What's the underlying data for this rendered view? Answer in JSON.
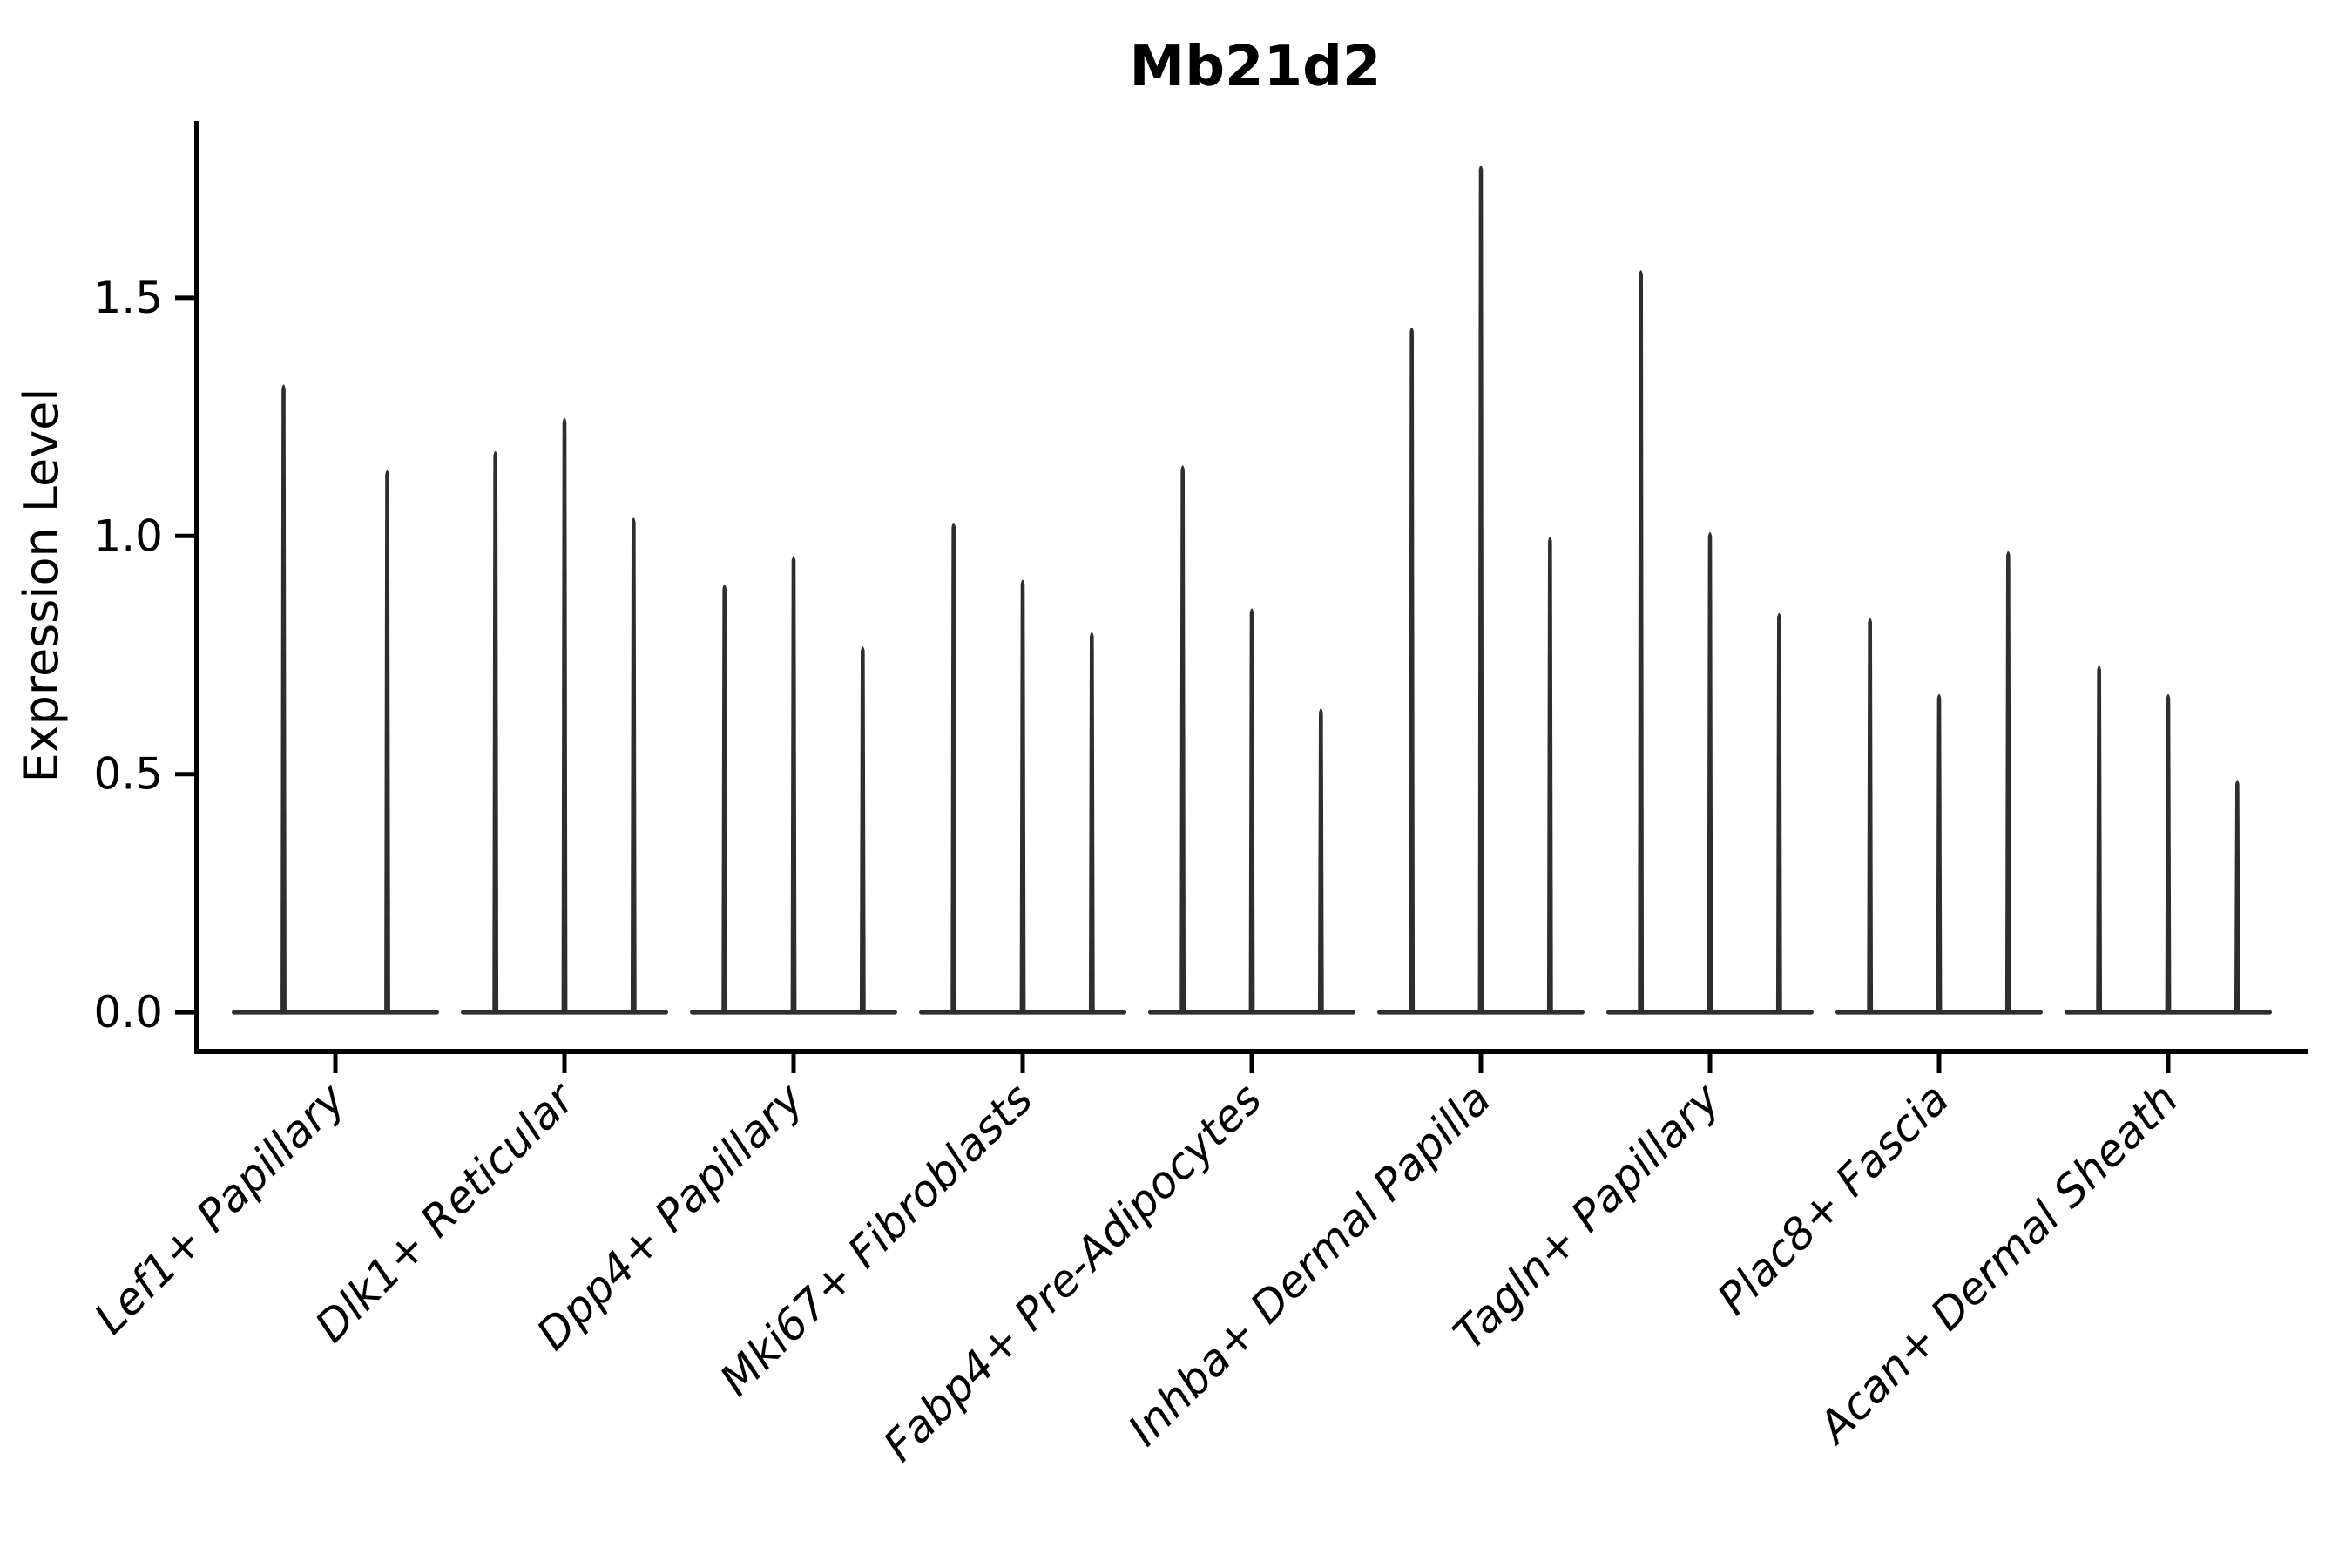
{
  "page": {
    "background": "#ffffff"
  },
  "chart_data": {
    "type": "violin",
    "title": "Mb21d2",
    "ylabel": "Expression Level",
    "xlabel": "",
    "violin_shape": "zero-inflated spike (wide flat base at 0, thin spike up to max expression)",
    "categories": [
      "Lef1+ Papillary",
      "Dlk1+ Reticular",
      "Dpp4+ Papillary",
      "Mki67+ Fibroblasts",
      "Fabp4+ Pre-Adipocytes",
      "Inhba+ Dermal Papilla",
      "Tagln+ Papillary",
      "Plac8+ Fascia",
      "Acan+ Dermal Sheath"
    ],
    "groups": [
      {
        "label": "Lef1+ Papillary",
        "violin_max_values": [
          1.32,
          1.14
        ]
      },
      {
        "label": "Dlk1+ Reticular",
        "violin_max_values": [
          1.18,
          1.25,
          1.04
        ]
      },
      {
        "label": "Dpp4+ Papillary",
        "violin_max_values": [
          0.9,
          0.96,
          0.77
        ]
      },
      {
        "label": "Mki67+ Fibroblasts",
        "violin_max_values": [
          1.03,
          0.91,
          0.8
        ]
      },
      {
        "label": "Fabp4+ Pre-Adipocytes",
        "violin_max_values": [
          1.15,
          0.85,
          0.64
        ]
      },
      {
        "label": "Inhba+ Dermal Papilla",
        "violin_max_values": [
          1.44,
          1.78,
          1.0
        ]
      },
      {
        "label": "Tagln+ Papillary",
        "violin_max_values": [
          1.56,
          1.01,
          0.84
        ]
      },
      {
        "label": "Plac8+ Fascia",
        "violin_max_values": [
          0.83,
          0.67,
          0.97
        ]
      },
      {
        "label": "Acan+ Dermal Sheath",
        "violin_max_values": [
          0.73,
          0.67,
          0.49
        ]
      }
    ],
    "y_ticks": [
      0.0,
      0.5,
      1.0,
      1.5
    ],
    "ylim": [
      -0.082,
      1.871
    ],
    "grid": false,
    "legend": "none",
    "x_tick_label_style": "italic, rotated 45 degrees, right-anchored",
    "colors": {
      "violin": "#2e2e2e",
      "axis": "#000000",
      "text": "#000000",
      "background": "#ffffff"
    }
  }
}
